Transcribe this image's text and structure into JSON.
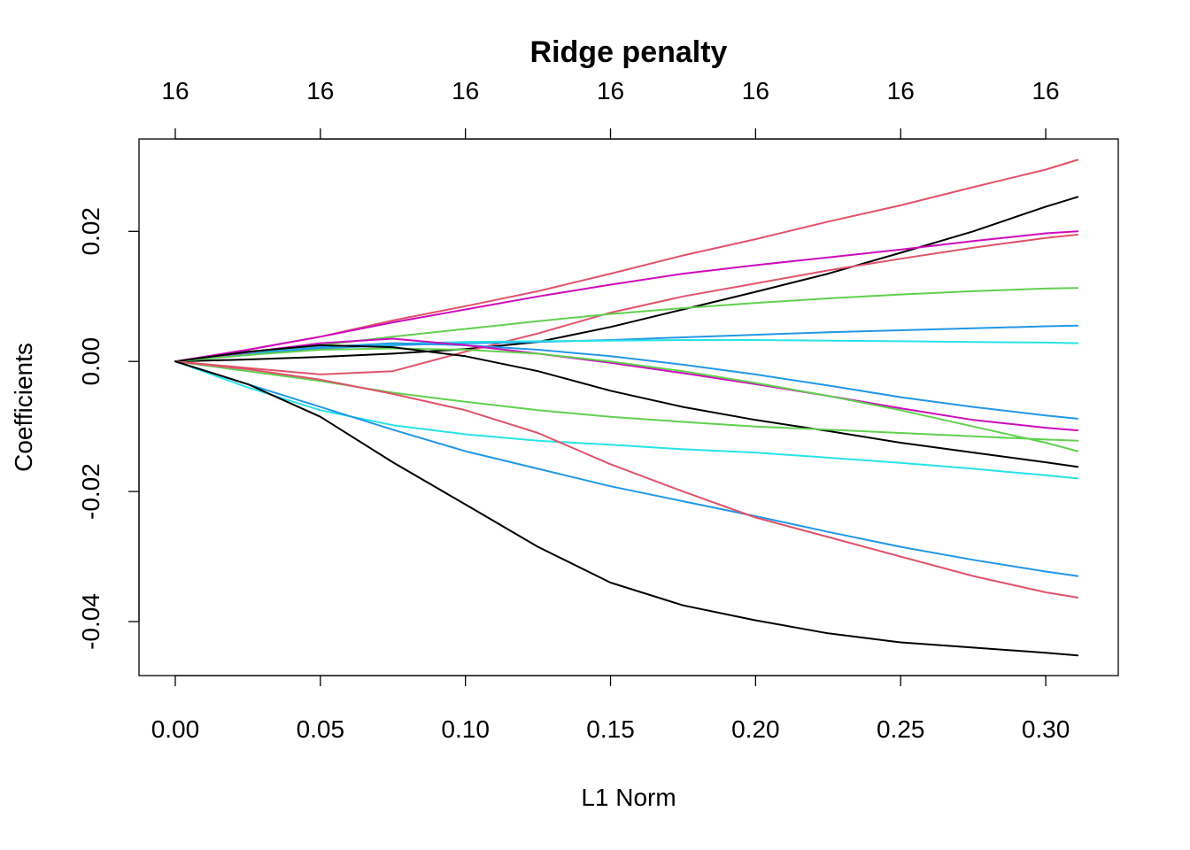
{
  "chart_data": {
    "type": "line",
    "title": "Ridge penalty",
    "xlabel": "L1 Norm",
    "ylabel": "Coefficients",
    "xlim": [
      -0.0125,
      0.325
    ],
    "ylim": [
      -0.0483,
      0.0342
    ],
    "x_ticks": [
      0.0,
      0.05,
      0.1,
      0.15,
      0.2,
      0.25,
      0.3
    ],
    "x_tick_labels": [
      "0.00",
      "0.05",
      "0.10",
      "0.15",
      "0.20",
      "0.25",
      "0.30"
    ],
    "y_ticks": [
      -0.04,
      -0.02,
      0.0,
      0.02
    ],
    "y_tick_labels": [
      "-0.04",
      "-0.02",
      "0.00",
      "0.02"
    ],
    "top_ticks": [
      0.0,
      0.05,
      0.1,
      0.15,
      0.2,
      0.25,
      0.3
    ],
    "top_tick_labels": [
      "16",
      "16",
      "16",
      "16",
      "16",
      "16",
      "16"
    ],
    "grid": false,
    "x": [
      0.0,
      0.025,
      0.05,
      0.075,
      0.1,
      0.125,
      0.15,
      0.175,
      0.2,
      0.225,
      0.25,
      0.275,
      0.3,
      0.311
    ],
    "series": [
      {
        "color": "#DF536B",
        "values": [
          0,
          0.0018,
          0.0038,
          0.0063,
          0.0085,
          0.0108,
          0.0135,
          0.0163,
          0.0188,
          0.0215,
          0.024,
          0.0268,
          0.0295,
          0.031
        ]
      },
      {
        "color": "#000000",
        "values": [
          0,
          0.0003,
          0.0007,
          0.0012,
          0.0019,
          0.003,
          0.0053,
          0.008,
          0.0107,
          0.0135,
          0.0167,
          0.02,
          0.0238,
          0.0253
        ]
      },
      {
        "color": "#CD0BBC",
        "values": [
          0,
          0.0018,
          0.0038,
          0.006,
          0.008,
          0.01,
          0.0118,
          0.0135,
          0.0148,
          0.016,
          0.0172,
          0.0185,
          0.0197,
          0.02
        ]
      },
      {
        "color": "#DF536B",
        "values": [
          0,
          -0.001,
          -0.002,
          -0.0015,
          0.0015,
          0.0043,
          0.0075,
          0.01,
          0.012,
          0.014,
          0.0158,
          0.0175,
          0.019,
          0.0195
        ]
      },
      {
        "color": "#61D04F",
        "values": [
          0,
          0.0012,
          0.0025,
          0.0038,
          0.005,
          0.0062,
          0.0073,
          0.0082,
          0.009,
          0.0097,
          0.0103,
          0.0108,
          0.0112,
          0.0113
        ]
      },
      {
        "color": "#2297E6",
        "values": [
          0,
          0.001,
          0.002,
          0.0025,
          0.0028,
          0.003,
          0.0033,
          0.0037,
          0.0041,
          0.0045,
          0.0048,
          0.0051,
          0.0054,
          0.0055
        ]
      },
      {
        "color": "#28E2E5",
        "values": [
          0,
          0.0012,
          0.0022,
          0.0027,
          0.003,
          0.0031,
          0.0032,
          0.0033,
          0.0033,
          0.0032,
          0.0031,
          0.003,
          0.0029,
          0.0028
        ]
      },
      {
        "color": "#2297E6",
        "values": [
          0,
          0.0011,
          0.0022,
          0.0028,
          0.0025,
          0.0018,
          0.0008,
          -0.0005,
          -0.002,
          -0.0037,
          -0.0055,
          -0.007,
          -0.0083,
          -0.0088
        ]
      },
      {
        "color": "#CD0BBC",
        "values": [
          0,
          0.0014,
          0.0028,
          0.0035,
          0.0025,
          0.0012,
          -0.0002,
          -0.0018,
          -0.0035,
          -0.0053,
          -0.0072,
          -0.009,
          -0.0102,
          -0.0106
        ]
      },
      {
        "color": "#61D04F",
        "values": [
          0,
          0.001,
          0.0018,
          0.002,
          0.0018,
          0.0012,
          0.0,
          -0.0015,
          -0.0033,
          -0.0053,
          -0.0075,
          -0.01,
          -0.0125,
          -0.0138
        ]
      },
      {
        "color": "#000000",
        "values": [
          0,
          0.0015,
          0.0025,
          0.0022,
          0.0008,
          -0.0015,
          -0.0045,
          -0.007,
          -0.009,
          -0.0107,
          -0.0125,
          -0.014,
          -0.0155,
          -0.0162
        ]
      },
      {
        "color": "#61D04F",
        "values": [
          0,
          -0.0015,
          -0.003,
          -0.0048,
          -0.0062,
          -0.0075,
          -0.0085,
          -0.0093,
          -0.01,
          -0.0105,
          -0.011,
          -0.0115,
          -0.012,
          -0.0122
        ]
      },
      {
        "color": "#28E2E5",
        "values": [
          0,
          -0.004,
          -0.0075,
          -0.0098,
          -0.0112,
          -0.0122,
          -0.0128,
          -0.0135,
          -0.014,
          -0.0148,
          -0.0156,
          -0.0165,
          -0.0175,
          -0.018
        ]
      },
      {
        "color": "#2297E6",
        "values": [
          0,
          -0.0035,
          -0.007,
          -0.0105,
          -0.0138,
          -0.0165,
          -0.0192,
          -0.0215,
          -0.0238,
          -0.0262,
          -0.0285,
          -0.0305,
          -0.0323,
          -0.033
        ]
      },
      {
        "color": "#DF536B",
        "values": [
          0,
          -0.0012,
          -0.0028,
          -0.005,
          -0.0075,
          -0.011,
          -0.0158,
          -0.02,
          -0.024,
          -0.027,
          -0.03,
          -0.033,
          -0.0355,
          -0.0363
        ]
      },
      {
        "color": "#000000",
        "values": [
          0,
          -0.0035,
          -0.0085,
          -0.0155,
          -0.022,
          -0.0285,
          -0.034,
          -0.0375,
          -0.0398,
          -0.0418,
          -0.0432,
          -0.044,
          -0.0448,
          -0.0452
        ]
      }
    ]
  }
}
